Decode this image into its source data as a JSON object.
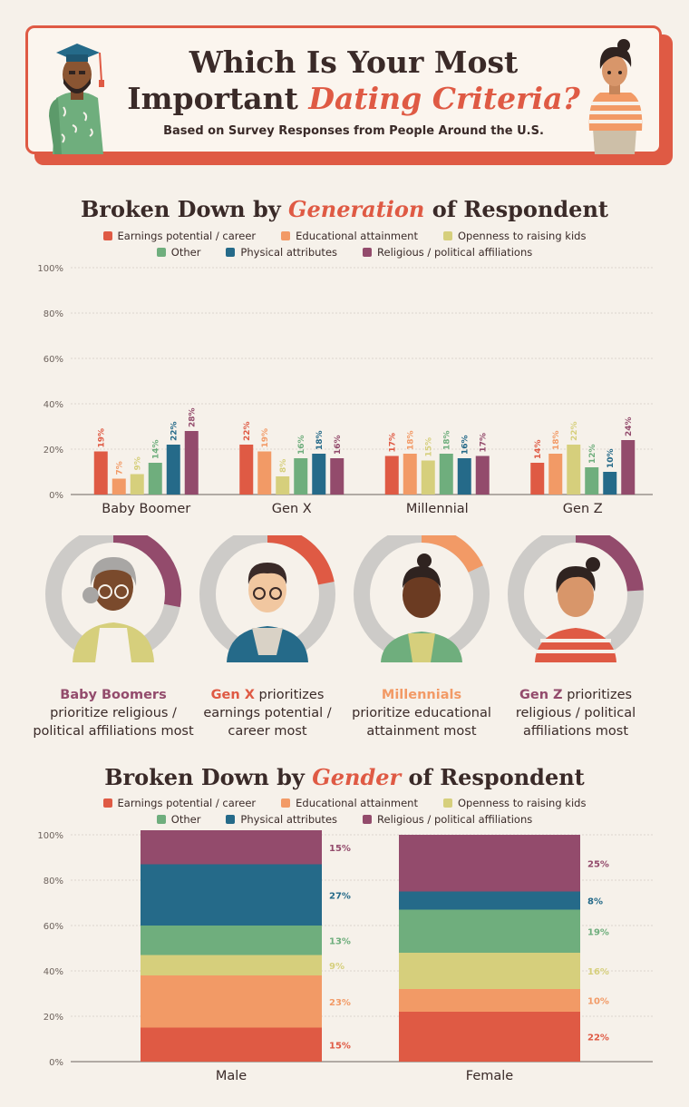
{
  "header": {
    "title_line1": "Which Is Your Most",
    "title_line2_plain": "Important",
    "title_line2_accent": "Dating Criteria?",
    "subtitle": "Based on Survey Responses from People Around the U.S."
  },
  "colors": {
    "earnings": "#df5a44",
    "education": "#f29a66",
    "kids": "#d6cf7c",
    "other": "#6fae7d",
    "physical": "#256a89",
    "religious": "#934b6c",
    "ring_bg": "#cdcbc8"
  },
  "legend": [
    {
      "key": "earnings",
      "label": "Earnings potential / career"
    },
    {
      "key": "education",
      "label": "Educational attainment"
    },
    {
      "key": "kids",
      "label": "Openness to raising kids"
    },
    {
      "key": "other",
      "label": "Other"
    },
    {
      "key": "physical",
      "label": "Physical attributes"
    },
    {
      "key": "religious",
      "label": "Religious / political affiliations"
    }
  ],
  "generation_section": {
    "title_before": "Broken Down by",
    "title_accent": "Generation",
    "title_after": "of Respondent"
  },
  "gender_section": {
    "title_before": "Broken Down by",
    "title_accent": "Gender",
    "title_after": "of Respondent"
  },
  "chart_data": [
    {
      "type": "bar",
      "categories": [
        "Baby Boomer",
        "Gen X",
        "Millennial",
        "Gen Z"
      ],
      "series": [
        {
          "name": "Earnings potential / career",
          "key": "earnings",
          "values": [
            19,
            22,
            17,
            14
          ]
        },
        {
          "name": "Educational attainment",
          "key": "education",
          "values": [
            7,
            19,
            18,
            18
          ]
        },
        {
          "name": "Openness to raising kids",
          "key": "kids",
          "values": [
            9,
            8,
            15,
            22
          ]
        },
        {
          "name": "Other",
          "key": "other",
          "values": [
            14,
            16,
            18,
            12
          ]
        },
        {
          "name": "Physical attributes",
          "key": "physical",
          "values": [
            22,
            18,
            16,
            10
          ]
        },
        {
          "name": "Religious / political affiliations",
          "key": "religious",
          "values": [
            28,
            16,
            17,
            24
          ]
        }
      ],
      "ylim": [
        0,
        100
      ],
      "yticks": [
        "0%",
        "20%",
        "40%",
        "60%",
        "80%",
        "100%"
      ],
      "value_suffix": "%",
      "grid": true,
      "legend_position": "top"
    },
    {
      "type": "bar",
      "stacked": true,
      "categories": [
        "Male",
        "Female"
      ],
      "series": [
        {
          "name": "Earnings potential / career",
          "key": "earnings",
          "values": [
            15,
            22
          ]
        },
        {
          "name": "Educational attainment",
          "key": "education",
          "values": [
            23,
            10
          ]
        },
        {
          "name": "Openness to raising kids",
          "key": "kids",
          "values": [
            9,
            16
          ]
        },
        {
          "name": "Other",
          "key": "other",
          "values": [
            13,
            19
          ]
        },
        {
          "name": "Physical attributes",
          "key": "physical",
          "values": [
            27,
            8
          ]
        },
        {
          "name": "Religious / political affiliations",
          "key": "religious",
          "values": [
            15,
            25
          ]
        }
      ],
      "ylim": [
        0,
        100
      ],
      "yticks": [
        "0%",
        "20%",
        "40%",
        "60%",
        "80%",
        "100%"
      ],
      "value_suffix": "%",
      "grid": true,
      "legend_position": "top"
    }
  ],
  "donuts": [
    {
      "generation": "Baby Boomer",
      "key": "religious",
      "value": 28,
      "caption_bold": "Baby Boomers",
      "caption_rest": "prioritize religious / political affiliations most"
    },
    {
      "generation": "Gen X",
      "key": "earnings",
      "value": 22,
      "caption_bold": "Gen X",
      "caption_rest": "prioritizes earnings potential / career most"
    },
    {
      "generation": "Millennial",
      "key": "education",
      "value": 18,
      "caption_bold": "Millennials",
      "caption_rest": "prioritize educational attainment most"
    },
    {
      "generation": "Gen Z",
      "key": "religious",
      "value": 24,
      "caption_bold": "Gen Z",
      "caption_rest": "prioritizes religious / political affiliations most"
    }
  ]
}
